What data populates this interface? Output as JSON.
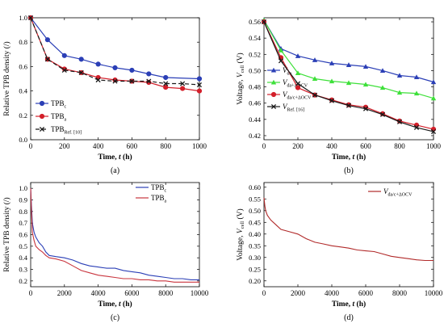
{
  "colors": {
    "blue": "#2b3fb6",
    "red": "#d31f2a",
    "black": "#1a1a1a",
    "green": "#3ee03a",
    "darkred": "#b12a2a"
  },
  "chart_data": [
    {
      "panel": "(a)",
      "type": "line",
      "xlabel_main": "Time, ",
      "xlabel_var": "t",
      "xlabel_unit": " (h)",
      "ylabel_main": "Relative TPB density ",
      "ylabel_unit": "(/)",
      "xlim": [
        0,
        1000
      ],
      "ylim": [
        0.0,
        1.0
      ],
      "xticks": [
        0,
        200,
        400,
        600,
        800,
        1000
      ],
      "yticks": [
        0.0,
        0.2,
        0.4,
        0.6,
        0.8,
        1.0
      ],
      "legend_position": "bottom-left",
      "series": [
        {
          "name": "TPB",
          "sub": "c",
          "color": "#2b3fb6",
          "dash": "",
          "marker": "circle",
          "x": [
            0,
            100,
            200,
            300,
            400,
            500,
            600,
            700,
            800,
            1000
          ],
          "y": [
            1.0,
            0.82,
            0.69,
            0.66,
            0.62,
            0.59,
            0.57,
            0.54,
            0.51,
            0.5
          ]
        },
        {
          "name": "TPB",
          "sub": "a",
          "color": "#d31f2a",
          "dash": "",
          "marker": "circle",
          "x": [
            0,
            100,
            200,
            300,
            400,
            500,
            600,
            700,
            800,
            900,
            1000
          ],
          "y": [
            1.0,
            0.66,
            0.58,
            0.55,
            0.51,
            0.49,
            0.48,
            0.47,
            0.43,
            0.42,
            0.4
          ]
        },
        {
          "name": "TPB",
          "sub": "Ref. [10]",
          "color": "#1a1a1a",
          "dash": "5,3",
          "marker": "x",
          "x": [
            0,
            100,
            200,
            300,
            400,
            500,
            600,
            700,
            800,
            900,
            1000
          ],
          "y": [
            1.0,
            0.66,
            0.57,
            0.55,
            0.49,
            0.48,
            0.48,
            0.48,
            0.46,
            0.46,
            0.45
          ]
        }
      ]
    },
    {
      "panel": "(b)",
      "type": "line",
      "xlabel_main": "Time, ",
      "xlabel_var": "t",
      "xlabel_unit": " (h)",
      "ylabel_main": "Voltage, ",
      "ylabel_var": "V",
      "ylabel_sub": "cell",
      "ylabel_unit": " (V)",
      "xlim": [
        0,
        1000
      ],
      "ylim": [
        0.415,
        0.565
      ],
      "xticks": [
        0,
        200,
        400,
        600,
        800,
        1000
      ],
      "yticks": [
        0.42,
        0.44,
        0.46,
        0.48,
        0.5,
        0.52,
        0.54,
        0.56
      ],
      "legend_position": "bottom-left",
      "series": [
        {
          "name": "V",
          "sub": "da",
          "color": "#2b3fb6",
          "marker": "triangle",
          "x": [
            0,
            100,
            200,
            300,
            400,
            500,
            600,
            700,
            800,
            900,
            1000
          ],
          "y": [
            0.562,
            0.527,
            0.518,
            0.513,
            0.509,
            0.507,
            0.505,
            0.5,
            0.494,
            0.492,
            0.486
          ]
        },
        {
          "name": "V",
          "sub": "da+ΔOCV",
          "color": "#3ee03a",
          "marker": "triangle",
          "x": [
            0,
            100,
            200,
            300,
            400,
            500,
            600,
            700,
            800,
            900,
            1000
          ],
          "y": [
            0.562,
            0.525,
            0.497,
            0.49,
            0.487,
            0.485,
            0.483,
            0.479,
            0.473,
            0.472,
            0.466
          ]
        },
        {
          "name": "V",
          "sub": "da/c+ΔOCV",
          "color": "#d31f2a",
          "marker": "circle",
          "x": [
            0,
            100,
            200,
            300,
            400,
            500,
            600,
            700,
            800,
            900,
            1000
          ],
          "y": [
            0.56,
            0.516,
            0.479,
            0.47,
            0.464,
            0.458,
            0.455,
            0.447,
            0.438,
            0.433,
            0.428
          ]
        },
        {
          "name": "V",
          "sub": "Ref. [16]",
          "color": "#1a1a1a",
          "marker": "x",
          "x": [
            0,
            100,
            200,
            300,
            400,
            500,
            600,
            700,
            800,
            900,
            1000
          ],
          "y": [
            0.56,
            0.512,
            0.484,
            0.47,
            0.463,
            0.457,
            0.453,
            0.446,
            0.437,
            0.43,
            0.425
          ]
        }
      ]
    },
    {
      "panel": "(c)",
      "type": "line",
      "xlabel_main": "Time, ",
      "xlabel_var": "t",
      "xlabel_unit": " (h)",
      "ylabel_main": "Relative TPB density ",
      "ylabel_unit": "(/)",
      "xlim": [
        0,
        10000
      ],
      "ylim": [
        0.15,
        1.05
      ],
      "xticks": [
        0,
        2000,
        4000,
        6000,
        8000,
        10000
      ],
      "yticks": [
        0.2,
        0.3,
        0.4,
        0.5,
        0.6,
        0.7,
        0.8,
        0.9,
        1.0
      ],
      "legend_position": "top-right",
      "series": [
        {
          "name": "TPB",
          "sub": "c",
          "color": "#2b3fb6",
          "x": [
            0,
            50,
            100,
            200,
            300,
            500,
            700,
            900,
            1100,
            1500,
            2000,
            2500,
            3000,
            3500,
            4000,
            4500,
            5000,
            5500,
            6000,
            6500,
            7000,
            7500,
            8000,
            8500,
            9000,
            9500,
            10000
          ],
          "y": [
            1.0,
            0.85,
            0.7,
            0.62,
            0.58,
            0.53,
            0.5,
            0.45,
            0.42,
            0.41,
            0.4,
            0.38,
            0.35,
            0.33,
            0.32,
            0.31,
            0.31,
            0.29,
            0.28,
            0.27,
            0.25,
            0.24,
            0.23,
            0.22,
            0.22,
            0.21,
            0.21
          ]
        },
        {
          "name": "TPB",
          "sub": "a",
          "color": "#c9353e",
          "x": [
            0,
            50,
            100,
            200,
            300,
            500,
            700,
            900,
            1100,
            1500,
            2000,
            2500,
            3000,
            3500,
            4000,
            4500,
            5000,
            5500,
            6000,
            6500,
            7000,
            7500,
            8000,
            8500,
            9000,
            9500,
            10000
          ],
          "y": [
            1.0,
            0.8,
            0.62,
            0.55,
            0.5,
            0.47,
            0.45,
            0.42,
            0.4,
            0.39,
            0.37,
            0.33,
            0.29,
            0.27,
            0.25,
            0.24,
            0.23,
            0.22,
            0.22,
            0.21,
            0.21,
            0.2,
            0.2,
            0.19,
            0.19,
            0.19,
            0.19
          ]
        }
      ]
    },
    {
      "panel": "(d)",
      "type": "line",
      "xlabel_main": "Time, ",
      "xlabel_var": "t",
      "xlabel_unit": " (h)",
      "ylabel_main": "Voltage, ",
      "ylabel_var": "V",
      "ylabel_sub": "cell",
      "ylabel_unit": " (V)",
      "xlim": [
        0,
        10000
      ],
      "ylim": [
        0.175,
        0.62
      ],
      "xticks": [
        0,
        2000,
        4000,
        6000,
        8000,
        10000
      ],
      "yticks": [
        0.2,
        0.25,
        0.3,
        0.35,
        0.4,
        0.45,
        0.5,
        0.55,
        0.6
      ],
      "legend_position": "top-right",
      "series": [
        {
          "name": "V",
          "sub": "da/c+ΔOCV",
          "color": "#b12a2a",
          "x": [
            0,
            50,
            100,
            200,
            400,
            700,
            1000,
            1500,
            2000,
            2500,
            3000,
            3500,
            4000,
            4500,
            5000,
            5500,
            6000,
            6500,
            7000,
            7500,
            8000,
            8500,
            9000,
            9500,
            10000
          ],
          "y": [
            0.555,
            0.52,
            0.5,
            0.48,
            0.46,
            0.44,
            0.42,
            0.41,
            0.4,
            0.38,
            0.365,
            0.358,
            0.35,
            0.345,
            0.34,
            0.332,
            0.328,
            0.325,
            0.315,
            0.305,
            0.3,
            0.295,
            0.29,
            0.287,
            0.287
          ]
        }
      ]
    }
  ]
}
